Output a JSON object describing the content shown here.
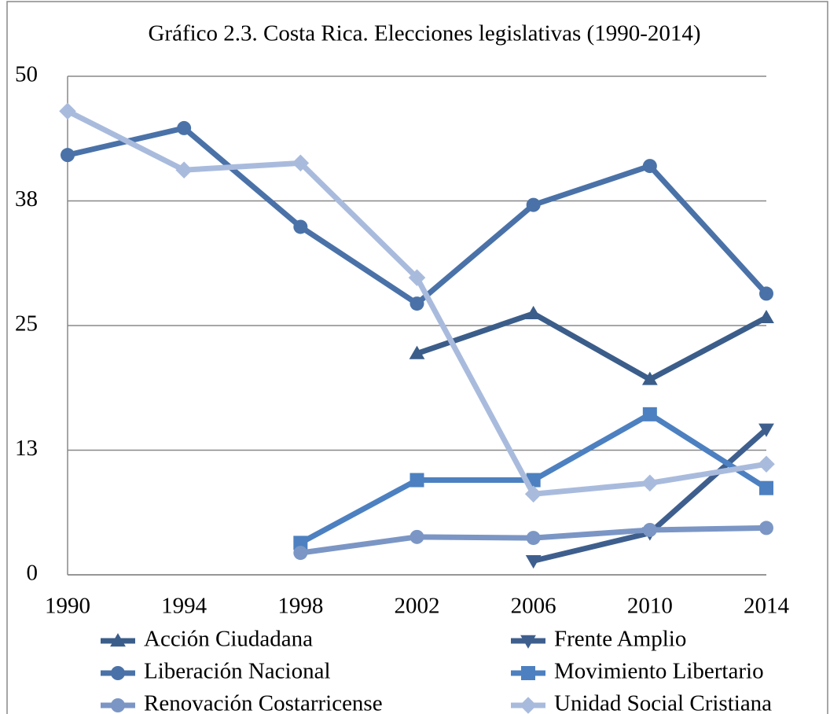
{
  "chart_data": {
    "type": "line",
    "title": "Gráfico 2.3. Costa Rica. Elecciones legislativas (1990-2014)",
    "categories": [
      "1990",
      "1994",
      "1998",
      "2002",
      "2006",
      "2010",
      "2014"
    ],
    "ylim": [
      0,
      50
    ],
    "yticks": [
      0,
      {
        "value": 12.5,
        "label": "13"
      },
      25,
      {
        "value": 37.5,
        "label": "38"
      },
      50
    ],
    "grid": true,
    "legend": "bottom",
    "series": [
      {
        "name": "Acción Ciudadana",
        "color": "#3b5d8a",
        "marker": "triangle",
        "values": [
          null,
          null,
          null,
          22.2,
          26.2,
          19.6,
          25.8
        ]
      },
      {
        "name": "Frente Amplio",
        "color": "#3e5f8e",
        "marker": "triangle-down",
        "values": [
          null,
          null,
          null,
          null,
          1.4,
          4.2,
          14.6
        ]
      },
      {
        "name": "Liberación Nacional",
        "color": "#4a72a8",
        "marker": "circle",
        "values": [
          42.1,
          44.8,
          34.9,
          27.2,
          37.1,
          41.0,
          28.2
        ]
      },
      {
        "name": "Movimiento Libertario",
        "color": "#4d80c0",
        "marker": "square",
        "values": [
          null,
          null,
          3.2,
          9.5,
          9.5,
          16.1,
          8.7
        ]
      },
      {
        "name": "Renovación Costarricense",
        "color": "#7b96c5",
        "marker": "circle",
        "values": [
          null,
          null,
          2.2,
          3.8,
          3.7,
          4.5,
          4.7
        ]
      },
      {
        "name": "Unidad Social Cristiana",
        "color": "#a9bbdd",
        "marker": "diamond",
        "values": [
          46.5,
          40.6,
          41.3,
          29.8,
          8.1,
          9.2,
          11.1
        ]
      }
    ]
  }
}
